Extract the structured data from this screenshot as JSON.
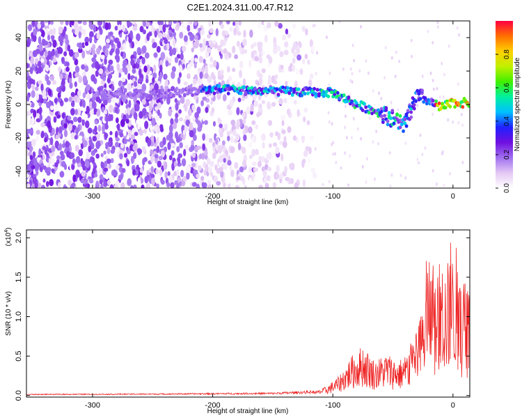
{
  "title": "C2E1.2024.311.00.47.R12",
  "chart_data": [
    {
      "type": "heatmap",
      "xlabel": "Height of straight line (km)",
      "ylabel": "Frequency (Hz)",
      "xlim": [
        -355,
        14
      ],
      "ylim": [
        -50,
        50
      ],
      "xticks": [
        -300,
        -200,
        -100,
        0
      ],
      "yticks": [
        -40,
        -20,
        0,
        20,
        40
      ],
      "colorbar": {
        "label": "Normalized spectral amplitude",
        "range": [
          0,
          1
        ],
        "ticks": [
          0.0,
          0.2,
          0.4,
          0.6,
          0.8
        ],
        "colormap": [
          "#ffffff",
          "#e4c8f4",
          "#a070f0",
          "#7010e0",
          "#2020ff",
          "#00c0ff",
          "#00f0a0",
          "#40f000",
          "#c0f000",
          "#ffd000",
          "#ff7000",
          "#ff0040"
        ]
      },
      "features": [
        {
          "description": "broadband noise cloud",
          "x_range": [
            -355,
            -120
          ],
          "y_range": [
            -50,
            50
          ]
        },
        {
          "description": "signal ridge",
          "x": [
            -290,
            -250,
            -200,
            -150,
            -100,
            -80,
            -60,
            -40,
            -30,
            -20,
            -10,
            0,
            14
          ],
          "y": [
            7,
            6,
            9,
            8,
            7,
            0,
            -5,
            -12,
            5,
            2,
            -2,
            1,
            1
          ]
        }
      ]
    },
    {
      "type": "line",
      "xlabel": "Height of straight line (km)",
      "ylabel": "SNR (10 * v/v)",
      "multiplier_label": "(x10",
      "multiplier_exp": "4",
      "multiplier_close": ")",
      "xlim": [
        -355,
        14
      ],
      "ylim": [
        -0.02,
        2.1
      ],
      "xticks": [
        -300,
        -200,
        -100,
        0
      ],
      "yticks": [
        "0.0",
        "0.5",
        "1.0",
        "1.5",
        "2.0"
      ],
      "series": [
        {
          "color": "#ee2222",
          "envelope_x": [
            -355,
            -250,
            -150,
            -115,
            -105,
            -95,
            -85,
            -75,
            -65,
            -55,
            -45,
            -35,
            -30,
            -25,
            -20,
            -15,
            -10,
            -5,
            0,
            5,
            14
          ],
          "envelope_y": [
            0.015,
            0.02,
            0.03,
            0.05,
            0.12,
            0.25,
            0.5,
            0.65,
            0.45,
            0.55,
            0.45,
            0.6,
            0.7,
            1.2,
            1.8,
            1.4,
            1.5,
            1.7,
            1.8,
            1.5,
            1.4
          ]
        }
      ]
    }
  ]
}
